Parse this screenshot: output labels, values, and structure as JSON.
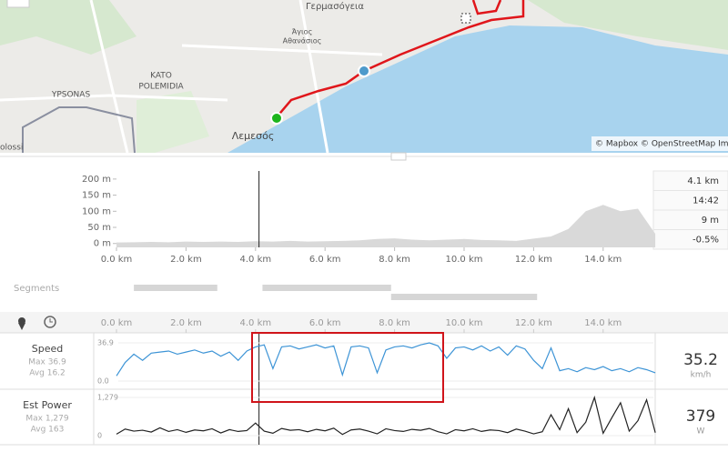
{
  "map": {
    "labels": {
      "germasogeia": "Γερμασόγεια",
      "agios": "Άγιος",
      "athanasios": "Αθανάσιος",
      "kato": "KATO",
      "polemidia": "POLEMIDIA",
      "ypsonas": "YPSONAS",
      "lemesos": "Λεμεσός",
      "kolossi": "olossi"
    },
    "attribution": "© Mapbox © OpenStreetMap Im"
  },
  "elevation_chart": {
    "type": "area",
    "x": [
      0,
      0.5,
      1,
      1.5,
      2,
      2.5,
      3,
      3.5,
      4,
      4.5,
      5,
      5.5,
      6,
      6.5,
      7,
      7.5,
      8,
      8.5,
      9,
      9.5,
      10,
      10.5,
      11,
      11.5,
      12,
      12.5,
      13,
      13.5,
      14,
      14.5,
      15,
      15.5
    ],
    "values": [
      3,
      4,
      5,
      4,
      6,
      5,
      6,
      5,
      7,
      6,
      8,
      6,
      7,
      8,
      10,
      14,
      16,
      12,
      10,
      12,
      14,
      11,
      10,
      8,
      15,
      22,
      45,
      100,
      120,
      100,
      108,
      30
    ],
    "color": "#d9d9d9",
    "xlim": [
      0,
      15.5
    ],
    "ylim": [
      -12,
      225
    ],
    "xticks": [
      {
        "value": 0,
        "label": "0.0 km"
      },
      {
        "value": 2,
        "label": "2.0 km"
      },
      {
        "value": 4,
        "label": "4.0 km"
      },
      {
        "value": 6,
        "label": "6.0 km"
      },
      {
        "value": 8,
        "label": "8.0 km"
      },
      {
        "value": 10,
        "label": "10.0 km"
      },
      {
        "value": 12,
        "label": "12.0 km"
      },
      {
        "value": 14,
        "label": "14.0 km"
      }
    ],
    "yticks": [
      {
        "value": 200,
        "label": "200 m"
      },
      {
        "value": 150,
        "label": "150 m"
      },
      {
        "value": 100,
        "label": "100 m"
      },
      {
        "value": 50,
        "label": "50 m"
      },
      {
        "value": 0,
        "label": "0 m"
      }
    ],
    "cursor_km": 4.1
  },
  "stats": [
    "4.1 km",
    "14:42",
    "9 m",
    "-0.5%"
  ],
  "segments": {
    "label": "Segments",
    "bars": [
      [
        0.5,
        2.9
      ],
      [
        4.2,
        7.9
      ],
      [
        7.9,
        12.1
      ]
    ]
  },
  "streams": {
    "xticks": [
      {
        "value": 0,
        "label": "0.0 km"
      },
      {
        "value": 2,
        "label": "2.0 km"
      },
      {
        "value": 4,
        "label": "4.0 km"
      },
      {
        "value": 6,
        "label": "6.0 km"
      },
      {
        "value": 8,
        "label": "8.0 km"
      },
      {
        "value": 10,
        "label": "10.0 km"
      },
      {
        "value": 12,
        "label": "12.0 km"
      },
      {
        "value": 14,
        "label": "14.0 km"
      }
    ],
    "x": [
      0,
      0.25,
      0.5,
      0.75,
      1,
      1.25,
      1.5,
      1.75,
      2,
      2.25,
      2.5,
      2.75,
      3,
      3.25,
      3.5,
      3.75,
      4,
      4.25,
      4.5,
      4.75,
      5,
      5.25,
      5.5,
      5.75,
      6,
      6.25,
      6.5,
      6.75,
      7,
      7.25,
      7.5,
      7.75,
      8,
      8.25,
      8.5,
      8.75,
      9,
      9.25,
      9.5,
      9.75,
      10,
      10.25,
      10.5,
      10.75,
      11,
      11.25,
      11.5,
      11.75,
      12,
      12.25,
      12.5,
      12.75,
      13,
      13.25,
      13.5,
      13.75,
      14,
      14.25,
      14.5,
      14.75,
      15,
      15.25,
      15.5
    ],
    "speed": {
      "type": "line",
      "name": "Speed",
      "max": "Max 36.9",
      "avg": "Avg 16.2",
      "current": "35.2",
      "unit": "km/h",
      "color": "#3d94d6",
      "ylim": [
        0,
        36.9
      ],
      "yticks": [
        36.9,
        {
          "value": 0,
          "label": "0.0"
        }
      ],
      "values": [
        5,
        18,
        26,
        20,
        27,
        28,
        29,
        26,
        28,
        30,
        27,
        29,
        24,
        28,
        20,
        29,
        33,
        35,
        12,
        33,
        34,
        31,
        33,
        35,
        32,
        34,
        6,
        33,
        34,
        32,
        8,
        30,
        33,
        34,
        32,
        35,
        36.9,
        34,
        22,
        32,
        33,
        30,
        34,
        29,
        33,
        25,
        34,
        31,
        20,
        12,
        32,
        10,
        12,
        9,
        13,
        11,
        14,
        10,
        12,
        9,
        13,
        11,
        8
      ]
    },
    "power": {
      "type": "line",
      "name": "Est Power",
      "max": "Max 1,279",
      "avg": "Avg 163",
      "current": "379",
      "unit": "W",
      "color": "#222222",
      "ylim": [
        0,
        1279
      ],
      "yticks": [
        {
          "value": 1279,
          "label": "1,279"
        },
        0
      ],
      "values": [
        50,
        220,
        150,
        180,
        120,
        260,
        140,
        200,
        110,
        190,
        160,
        230,
        90,
        200,
        140,
        170,
        420,
        150,
        80,
        240,
        180,
        200,
        130,
        210,
        160,
        250,
        40,
        190,
        220,
        150,
        60,
        230,
        170,
        140,
        210,
        180,
        240,
        130,
        60,
        200,
        160,
        230,
        140,
        190,
        170,
        100,
        220,
        150,
        60,
        130,
        700,
        200,
        900,
        100,
        450,
        1279,
        80,
        600,
        1100,
        150,
        500,
        1200,
        100
      ]
    }
  }
}
